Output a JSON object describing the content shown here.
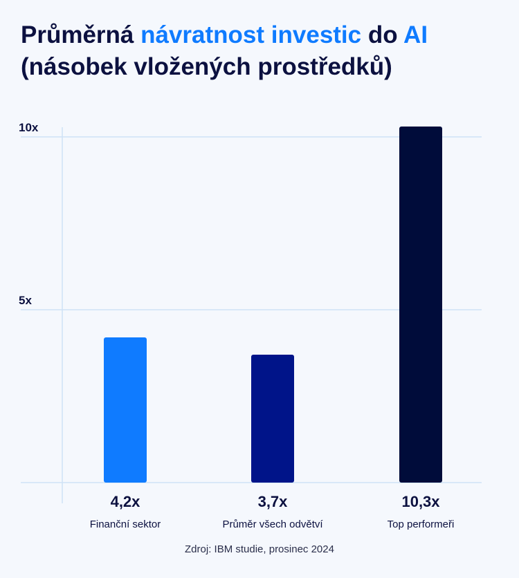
{
  "title": {
    "part1": "Průměrná ",
    "highlight1": "návratnost investic",
    "part2": " do ",
    "highlight2": "AI",
    "line2": "(násobek vložených prostředků)"
  },
  "chart_data": {
    "type": "bar",
    "categories": [
      "Finanční sektor",
      "Průměr všech odvětví",
      "Top performeři"
    ],
    "values": [
      4.2,
      3.7,
      10.3
    ],
    "value_labels": [
      "4,2x",
      "3,7x",
      "10,3x"
    ],
    "colors": [
      "#0f7bff",
      "#001489",
      "#000c3a"
    ],
    "y_ticks": [
      {
        "value": 5,
        "label": "5x"
      },
      {
        "value": 10,
        "label": "10x"
      }
    ],
    "ylim": [
      0,
      10.3
    ],
    "grid": true,
    "gridline_color": "#cfe2f6"
  },
  "source": "Zdroj: IBM studie, prosinec 2024"
}
